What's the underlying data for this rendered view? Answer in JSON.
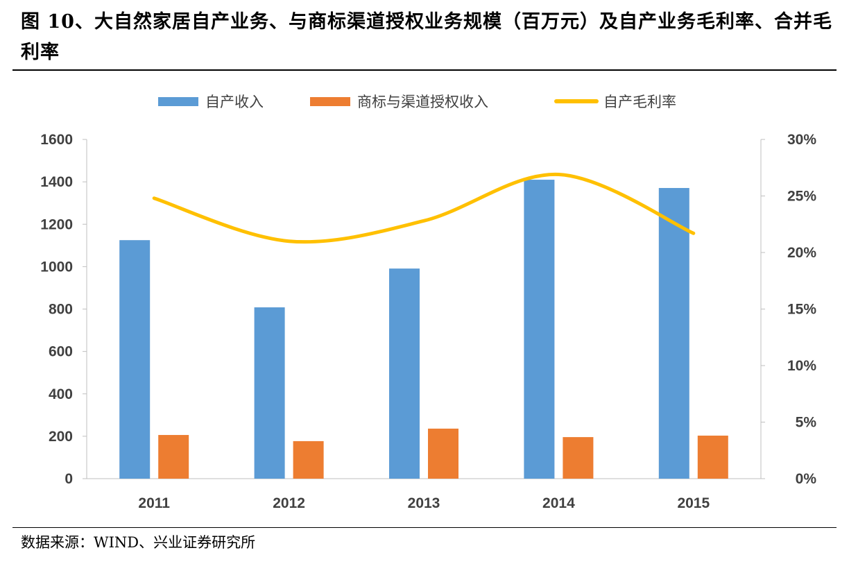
{
  "title": "图 10、大自然家居自产业务、与商标渠道授权业务规模（百万元）及自产业务毛利率、合并毛利率",
  "source": "数据来源：WIND、兴业证券研究所",
  "chart_data": {
    "type": "bar+line",
    "categories": [
      "2011",
      "2012",
      "2013",
      "2014",
      "2015"
    ],
    "series": [
      {
        "name": "自产收入",
        "type": "bar",
        "axis": "left",
        "color": "#5B9BD5",
        "values": [
          1125,
          808,
          991,
          1410,
          1371
        ]
      },
      {
        "name": "商标与渠道授权收入",
        "type": "bar",
        "axis": "left",
        "color": "#ED7D31",
        "values": [
          206,
          177,
          236,
          196,
          203
        ]
      },
      {
        "name": "自产毛利率",
        "type": "line",
        "axis": "right",
        "color": "#FFC000",
        "values": [
          24.8,
          21.0,
          22.8,
          26.9,
          21.7
        ]
      }
    ],
    "y_left": {
      "range": [
        0,
        1600
      ],
      "ticks": [
        "0",
        "200",
        "400",
        "600",
        "800",
        "1000",
        "1200",
        "1400",
        "1600"
      ]
    },
    "y_right": {
      "range": [
        0,
        30
      ],
      "ticks": [
        "0%",
        "5%",
        "10%",
        "15%",
        "20%",
        "25%",
        "30%"
      ]
    },
    "legend": "top",
    "grid": false
  }
}
